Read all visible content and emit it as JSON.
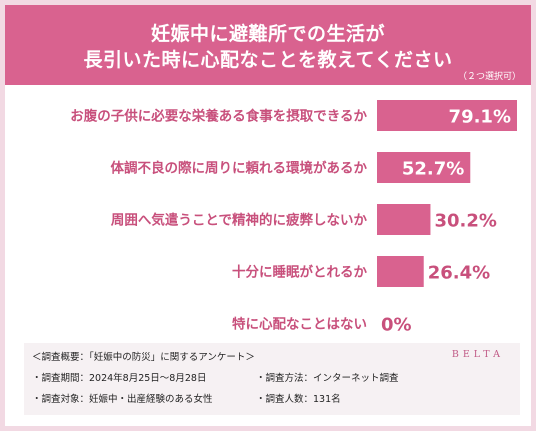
{
  "header": {
    "title_line1": "妊娠中に避難所での生活が",
    "title_line2": "長引いた時に心配なことを教えてください",
    "note": "（２つ選択可）"
  },
  "chart_data": {
    "type": "bar",
    "orientation": "horizontal",
    "categories": [
      "お腹の子供に必要な栄養ある食事を摂取できるか",
      "体調不良の際に周りに頼れる環境があるか",
      "周囲へ気遣うことで精神的に疲弊しないか",
      "十分に睡眠がとれるか",
      "特に心配なことはない"
    ],
    "values": [
      79.1,
      52.7,
      30.2,
      26.4,
      0
    ],
    "value_labels": [
      "79.1%",
      "52.7%",
      "30.2%",
      "26.4%",
      "0%"
    ],
    "unit": "%",
    "bar_color": "#d9628f",
    "grid": false
  },
  "footer": {
    "line1": "＜調査概要：「妊娠中の防災」に関するアンケート＞",
    "period": "・調査期間：2024年8月25日〜8月28日",
    "method": "・調査方法：インターネット調査",
    "target": "・調査対象：妊娠中・出産経験のある女性",
    "count": "・調査人数：131名",
    "brand": "BELTA"
  }
}
